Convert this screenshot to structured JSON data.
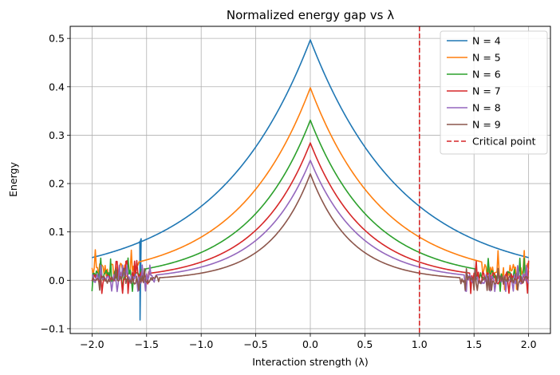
{
  "chart_data": {
    "type": "line",
    "title": "Normalized energy gap vs λ",
    "xlabel": "Interaction strength (λ)",
    "ylabel": "Energy",
    "xlim": [
      -2.2,
      2.2
    ],
    "ylim": [
      -0.11,
      0.525
    ],
    "xticks": [
      -2.0,
      -1.5,
      -1.0,
      -0.5,
      0.0,
      0.5,
      1.0,
      1.5,
      2.0
    ],
    "xtick_labels": [
      "−2.0",
      "−1.5",
      "−1.0",
      "−0.5",
      "0.0",
      "0.5",
      "1.0",
      "1.5",
      "2.0"
    ],
    "yticks": [
      -0.1,
      0.0,
      0.1,
      0.2,
      0.3,
      0.4,
      0.5
    ],
    "ytick_labels": [
      "−0.1",
      "0.0",
      "0.1",
      "0.2",
      "0.3",
      "0.4",
      "0.5"
    ],
    "grid": true,
    "legend_position": "top-right",
    "series": [
      {
        "name": "N = 4",
        "color": "#1f77b4",
        "peak": 0.497,
        "edge": 0.047,
        "noise_onset": 1.56,
        "noise_amp": 0.0
      },
      {
        "name": "N = 5",
        "color": "#ff7f0e",
        "peak": 0.398,
        "edge": 0.02,
        "noise_onset": 1.58,
        "noise_amp": 0.018
      },
      {
        "name": "N = 6",
        "color": "#2ca02c",
        "peak": 0.331,
        "edge": 0.01,
        "noise_onset": 1.52,
        "noise_amp": 0.015
      },
      {
        "name": "N = 7",
        "color": "#d62728",
        "peak": 0.284,
        "edge": 0.005,
        "noise_onset": 1.47,
        "noise_amp": 0.015
      },
      {
        "name": "N = 8",
        "color": "#9467bd",
        "peak": 0.248,
        "edge": 0.003,
        "noise_onset": 1.42,
        "noise_amp": 0.012
      },
      {
        "name": "N = 9",
        "color": "#8c564b",
        "peak": 0.22,
        "edge": 0.001,
        "noise_onset": 1.38,
        "noise_amp": 0.01
      }
    ],
    "n4_anomaly": {
      "dip_x": -1.56,
      "dip_y": -0.082,
      "pre_jump_y": 0.08,
      "post_jump_y": 0.088
    },
    "critical_point": {
      "name": "Critical point",
      "x": 1.0,
      "color": "#d62728"
    }
  }
}
